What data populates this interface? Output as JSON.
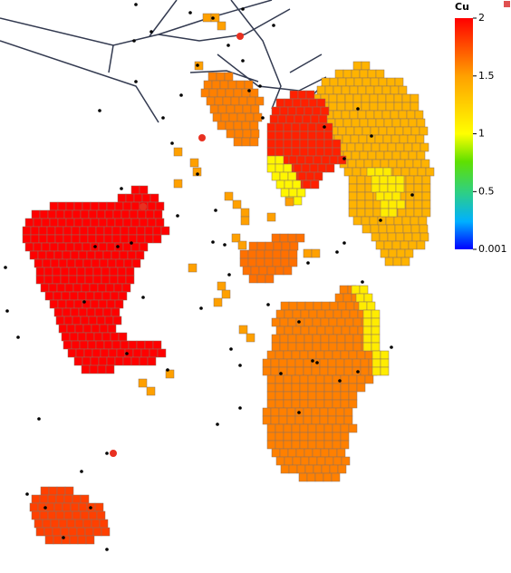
{
  "legend": {
    "title": "Cu",
    "range": [
      0.001,
      2
    ],
    "ticks": [
      2,
      1.5,
      1,
      0.5,
      0.001
    ]
  },
  "regions": [
    {
      "value": 2
    },
    {
      "value": 1.6
    },
    {
      "value": 1.1
    },
    {
      "value": 1.4
    },
    {
      "value": 1.1
    },
    {
      "value": 1.9
    },
    {
      "value": 1.05
    },
    {
      "value": 1.8
    },
    {
      "value": 1.6
    },
    {
      "value": 1.65
    },
    {
      "value": 1.5
    }
  ]
}
